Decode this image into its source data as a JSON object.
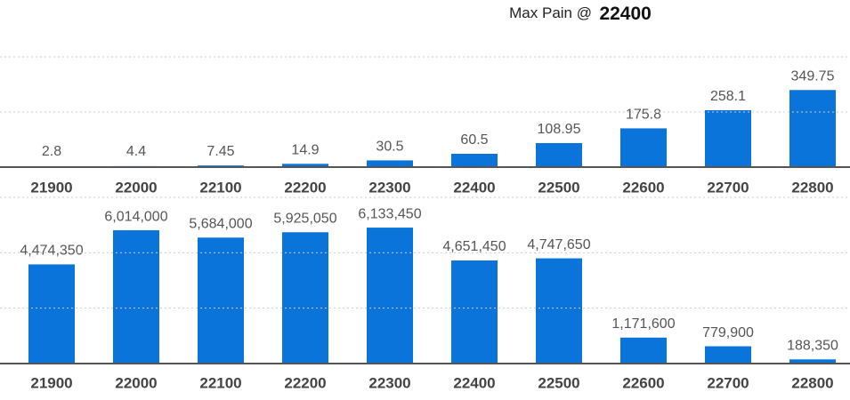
{
  "title": {
    "label": "Max Pain @",
    "value": "22400"
  },
  "chart_data": [
    {
      "type": "bar",
      "categories": [
        "21900",
        "22000",
        "22100",
        "22200",
        "22300",
        "22400",
        "22500",
        "22600",
        "22700",
        "22800"
      ],
      "values": [
        2.8,
        4.4,
        7.45,
        14.9,
        30.5,
        60.5,
        108.95,
        175.8,
        258.1,
        349.75
      ],
      "color": "#0b74da",
      "ylim": [
        0,
        500
      ],
      "yticks": [
        0,
        250,
        500
      ],
      "grid": true
    },
    {
      "type": "bar",
      "categories": [
        "21900",
        "22000",
        "22100",
        "22200",
        "22300",
        "22400",
        "22500",
        "22600",
        "22700",
        "22800"
      ],
      "values": [
        4474350,
        6014000,
        5684000,
        5925050,
        6133450,
        4651450,
        4747650,
        1171600,
        779900,
        188350
      ],
      "value_labels": [
        "4,474,350",
        "6,014,000",
        "5,684,000",
        "5,925,050",
        "6,133,450",
        "4,651,450",
        "4,747,650",
        "1,171,600",
        "779,900",
        "188,350"
      ],
      "color": "#0b74da",
      "ylim": [
        0,
        7500000
      ],
      "yticks": [
        0,
        2500000,
        5000000,
        7500000
      ],
      "grid": true
    }
  ]
}
